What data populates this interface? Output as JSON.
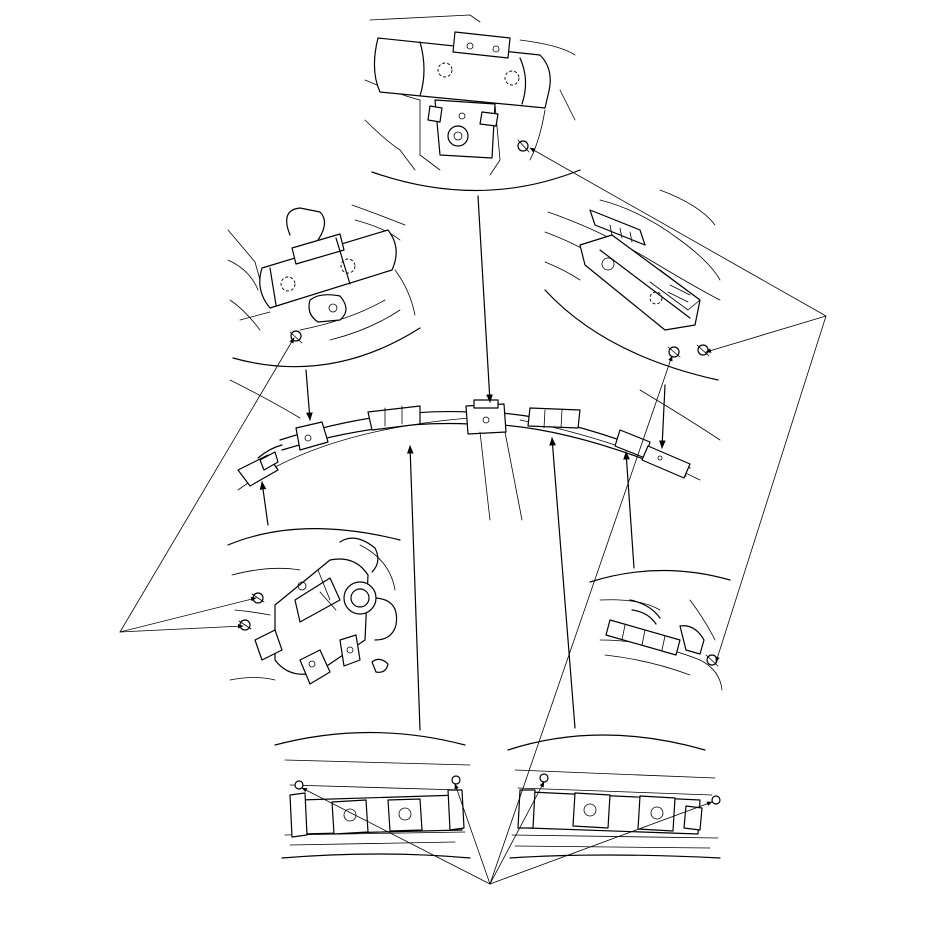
{
  "figure": {
    "labels": [],
    "colors": {
      "line": "#000000",
      "background": "#ffffff"
    },
    "views": [
      {
        "id": "center-upper",
        "icon": "steering-column-bracket-detail"
      },
      {
        "id": "left-upper",
        "icon": "left-pillar-bracket-detail"
      },
      {
        "id": "right-upper",
        "icon": "right-pillar-bracket-detail"
      },
      {
        "id": "left-middle",
        "icon": "inflator-connector-detail"
      },
      {
        "id": "right-middle",
        "icon": "rear-anchor-detail"
      },
      {
        "id": "bottom-left",
        "icon": "left-roof-rail-clips-detail"
      },
      {
        "id": "bottom-right",
        "icon": "right-roof-rail-clips-detail"
      }
    ],
    "callouts": [
      {
        "id": "bolt-leader-right",
        "target": "bolts"
      },
      {
        "id": "bolt-leader-left",
        "target": "bolts"
      },
      {
        "id": "clip-leader-bottom",
        "target": "clips"
      }
    ]
  }
}
